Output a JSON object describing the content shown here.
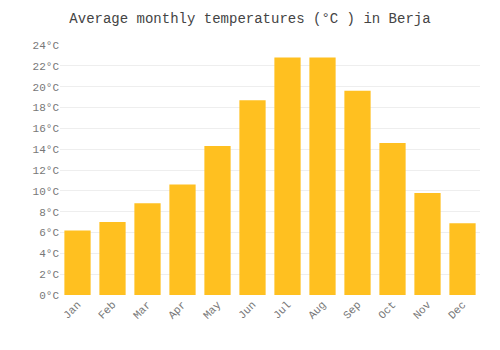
{
  "chart_data": {
    "type": "bar",
    "title": "Average monthly temperatures (°C ) in Berja",
    "categories": [
      "Jan",
      "Feb",
      "Mar",
      "Apr",
      "May",
      "Jun",
      "Jul",
      "Aug",
      "Sep",
      "Oct",
      "Nov",
      "Dec"
    ],
    "values": [
      6.2,
      7.0,
      8.8,
      10.6,
      14.3,
      18.7,
      22.8,
      22.8,
      19.6,
      14.6,
      9.8,
      6.9
    ],
    "color": "#FFC020",
    "ylim": [
      0,
      24
    ],
    "yticks": [
      {
        "value": 0,
        "label": "0°C"
      },
      {
        "value": 2,
        "label": "2°C"
      },
      {
        "value": 4,
        "label": "4°C"
      },
      {
        "value": 6,
        "label": "6°C"
      },
      {
        "value": 8,
        "label": "8°C"
      },
      {
        "value": 10,
        "label": "10°C"
      },
      {
        "value": 12,
        "label": "12°C"
      },
      {
        "value": 14,
        "label": "14°C"
      },
      {
        "value": 16,
        "label": "16°C"
      },
      {
        "value": 18,
        "label": "18°C"
      },
      {
        "value": 20,
        "label": "20°C"
      },
      {
        "value": 22,
        "label": "22°C"
      },
      {
        "value": 24,
        "label": "24°C"
      }
    ],
    "grid": true
  }
}
